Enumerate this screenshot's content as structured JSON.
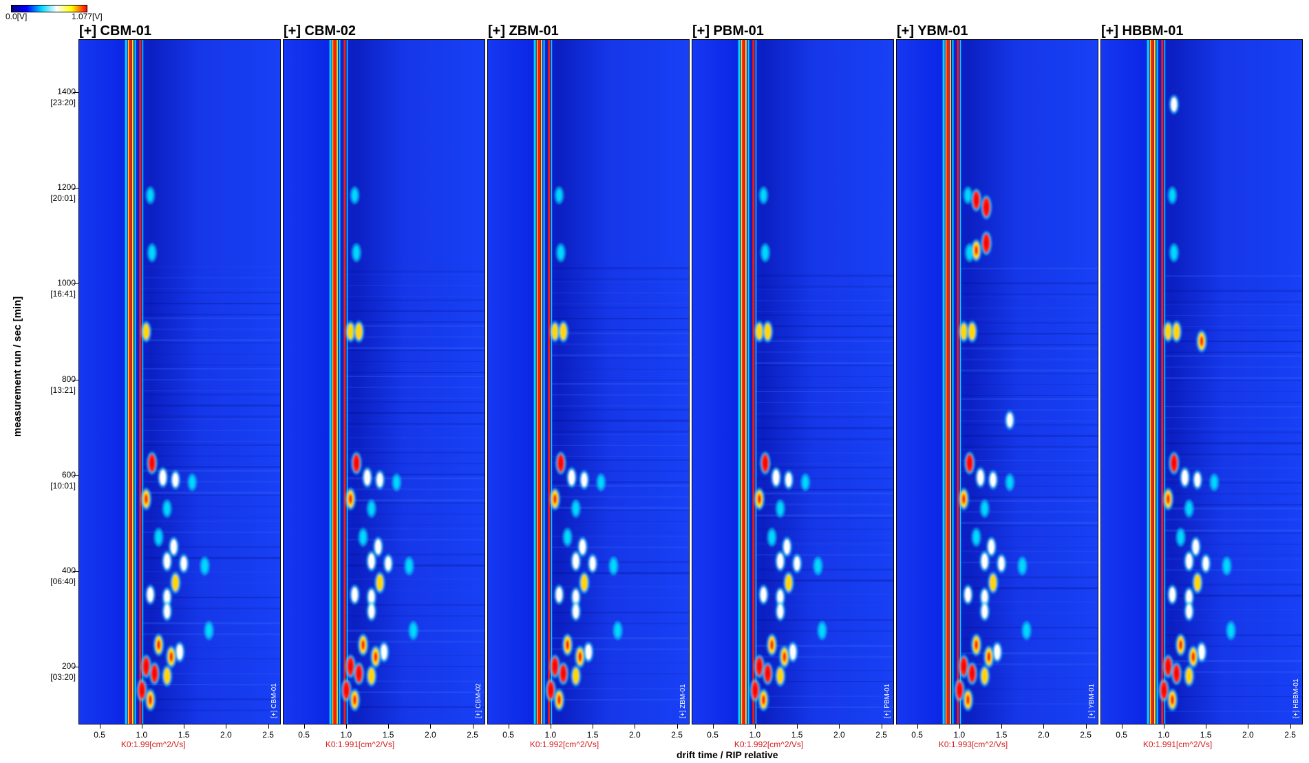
{
  "chart_data": {
    "type": "heatmap",
    "colorbar": {
      "min_label": "0.0[V]",
      "max_label": "1.077[V]",
      "colors": [
        "#000080",
        "#0000ff",
        "#00d8ff",
        "#ffffff",
        "#ffff00",
        "#ff0000"
      ]
    },
    "xlabel": "drift time / RIP relative",
    "ylabel": "measurement run / sec [min]",
    "xlim": [
      0.25,
      2.65
    ],
    "ylim": [
      80,
      1510
    ],
    "x_ticks": [
      "0.5",
      "1.0",
      "1.5",
      "2.0",
      "2.5"
    ],
    "x_tick_values": [
      0.5,
      1.0,
      1.5,
      2.0,
      2.5
    ],
    "y_ticks": [
      {
        "value": 1400,
        "label": "1400",
        "sub": "[23:20]"
      },
      {
        "value": 1200,
        "label": "1200",
        "sub": "[20:01]"
      },
      {
        "value": 1000,
        "label": "1000",
        "sub": "[16:41]"
      },
      {
        "value": 800,
        "label": "800",
        "sub": "[13:21]"
      },
      {
        "value": 600,
        "label": "600",
        "sub": "[10:01]"
      },
      {
        "value": 400,
        "label": "400",
        "sub": "[06:40]"
      },
      {
        "value": 200,
        "label": "200",
        "sub": "[03:20]"
      }
    ],
    "panels": [
      {
        "title": "[+] CBM-01",
        "k0": "K0:1.99[cm^2/Vs]",
        "vertical_label": "[+] CBM-01"
      },
      {
        "title": "[+] CBM-02",
        "k0": "K0:1.991[cm^2/Vs]",
        "vertical_label": "[+] CBM-02"
      },
      {
        "title": "[+] ZBM-01",
        "k0": "K0:1.992[cm^2/Vs]",
        "vertical_label": "[+] ZBM-01"
      },
      {
        "title": "[+] PBM-01",
        "k0": "K0:1.992[cm^2/Vs]",
        "vertical_label": "[+] PBM-01"
      },
      {
        "title": "[+] YBM-01",
        "k0": "K0:1.993[cm^2/Vs]",
        "vertical_label": "[+] YBM-01"
      },
      {
        "title": "[+] HBBM-01",
        "k0": "K0:1.991[cm^2/Vs]",
        "vertical_label": "[+] HBBM-01"
      }
    ],
    "rip_drift_time": 0.86,
    "peaks": [
      {
        "panels": [
          0,
          1,
          2,
          3,
          4,
          5
        ],
        "x": 1.1,
        "y": 1185,
        "i": 0.45
      },
      {
        "panels": [
          0,
          1,
          2,
          3,
          4,
          5
        ],
        "x": 1.12,
        "y": 1065,
        "i": 0.55
      },
      {
        "panels": [
          0,
          1,
          2,
          3,
          4,
          5
        ],
        "x": 1.05,
        "y": 900,
        "i": 0.75
      },
      {
        "panels": [
          1,
          2,
          3,
          4,
          5
        ],
        "x": 1.15,
        "y": 900,
        "i": 0.8
      },
      {
        "panels": [
          0,
          1,
          2,
          3,
          4,
          5
        ],
        "x": 1.12,
        "y": 625,
        "i": 0.9
      },
      {
        "panels": [
          0,
          1,
          2,
          3,
          4,
          5
        ],
        "x": 1.25,
        "y": 595,
        "i": 0.7
      },
      {
        "panels": [
          0,
          1,
          2,
          3,
          4,
          5
        ],
        "x": 1.4,
        "y": 590,
        "i": 0.6
      },
      {
        "panels": [
          0,
          1,
          2,
          3,
          4,
          5
        ],
        "x": 1.6,
        "y": 585,
        "i": 0.45
      },
      {
        "panels": [
          0,
          1,
          2,
          3,
          4,
          5
        ],
        "x": 1.05,
        "y": 550,
        "i": 0.85
      },
      {
        "panels": [
          0,
          1,
          2,
          3,
          4,
          5
        ],
        "x": 1.3,
        "y": 530,
        "i": 0.5
      },
      {
        "panels": [
          0,
          1,
          2,
          3,
          4,
          5
        ],
        "x": 1.2,
        "y": 470,
        "i": 0.55
      },
      {
        "panels": [
          0,
          1,
          2,
          3,
          4,
          5
        ],
        "x": 1.38,
        "y": 450,
        "i": 0.65
      },
      {
        "panels": [
          0,
          1,
          2,
          3,
          4,
          5
        ],
        "x": 1.3,
        "y": 420,
        "i": 0.7
      },
      {
        "panels": [
          0,
          1,
          2,
          3,
          4,
          5
        ],
        "x": 1.5,
        "y": 415,
        "i": 0.6
      },
      {
        "panels": [
          0,
          1,
          2,
          3,
          4,
          5
        ],
        "x": 1.75,
        "y": 410,
        "i": 0.55
      },
      {
        "panels": [
          0,
          1,
          2,
          3,
          4,
          5
        ],
        "x": 1.4,
        "y": 375,
        "i": 0.8
      },
      {
        "panels": [
          0,
          1,
          2,
          3,
          4,
          5
        ],
        "x": 1.1,
        "y": 350,
        "i": 0.65
      },
      {
        "panels": [
          0,
          1,
          2,
          3,
          4,
          5
        ],
        "x": 1.3,
        "y": 345,
        "i": 0.6
      },
      {
        "panels": [
          0,
          1,
          2,
          3,
          4,
          5
        ],
        "x": 1.3,
        "y": 315,
        "i": 0.6
      },
      {
        "panels": [
          0,
          1,
          2,
          3,
          4,
          5
        ],
        "x": 1.8,
        "y": 275,
        "i": 0.55
      },
      {
        "panels": [
          0,
          1,
          2,
          3,
          4,
          5
        ],
        "x": 1.2,
        "y": 245,
        "i": 0.85
      },
      {
        "panels": [
          0,
          1,
          2,
          3,
          4,
          5
        ],
        "x": 1.45,
        "y": 230,
        "i": 0.7
      },
      {
        "panels": [
          0,
          1,
          2,
          3,
          4,
          5
        ],
        "x": 1.35,
        "y": 220,
        "i": 0.85
      },
      {
        "panels": [
          0,
          1,
          2,
          3,
          4,
          5
        ],
        "x": 1.05,
        "y": 200,
        "i": 0.95
      },
      {
        "panels": [
          0,
          1,
          2,
          3,
          4,
          5
        ],
        "x": 1.15,
        "y": 185,
        "i": 0.9
      },
      {
        "panels": [
          0,
          1,
          2,
          3,
          4,
          5
        ],
        "x": 1.3,
        "y": 180,
        "i": 0.75
      },
      {
        "panels": [
          0,
          1,
          2,
          3,
          4,
          5
        ],
        "x": 1.0,
        "y": 150,
        "i": 0.9
      },
      {
        "panels": [
          0,
          1,
          2,
          3,
          4,
          5
        ],
        "x": 1.1,
        "y": 130,
        "i": 0.85
      },
      {
        "panels": [
          4
        ],
        "x": 1.2,
        "y": 1175,
        "i": 0.9
      },
      {
        "panels": [
          4
        ],
        "x": 1.32,
        "y": 1160,
        "i": 1.0
      },
      {
        "panels": [
          4
        ],
        "x": 1.32,
        "y": 1085,
        "i": 1.0
      },
      {
        "panels": [
          4
        ],
        "x": 1.2,
        "y": 1070,
        "i": 0.85
      },
      {
        "panels": [
          4
        ],
        "x": 1.6,
        "y": 715,
        "i": 0.6
      },
      {
        "panels": [
          5
        ],
        "x": 1.45,
        "y": 880,
        "i": 0.85
      },
      {
        "panels": [
          5
        ],
        "x": 1.12,
        "y": 1375,
        "i": 0.6
      }
    ]
  }
}
